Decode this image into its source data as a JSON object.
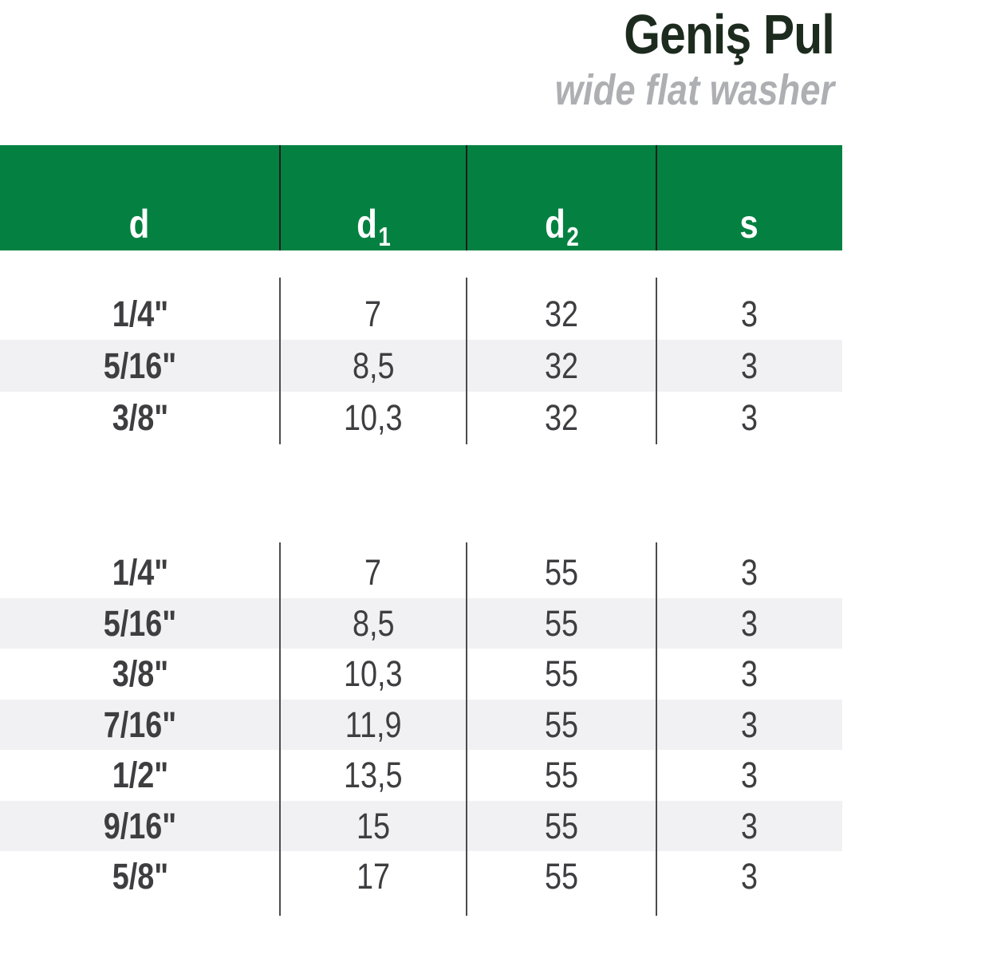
{
  "title": "Geniş Pul",
  "subtitle": "wide flat washer",
  "table": {
    "columns": [
      {
        "base": "d",
        "sub": ""
      },
      {
        "base": "d",
        "sub": "1"
      },
      {
        "base": "d",
        "sub": "2"
      },
      {
        "base": "s",
        "sub": ""
      }
    ],
    "sections": [
      {
        "rows": [
          [
            "1/4\"",
            "7",
            "32",
            "3"
          ],
          [
            "5/16\"",
            "8,5",
            "32",
            "3"
          ],
          [
            "3/8\"",
            "10,3",
            "32",
            "3"
          ]
        ]
      },
      {
        "rows": [
          [
            "1/4\"",
            "7",
            "55",
            "3"
          ],
          [
            "5/16\"",
            "8,5",
            "55",
            "3"
          ],
          [
            "3/8\"",
            "10,3",
            "55",
            "3"
          ],
          [
            "7/16\"",
            "11,9",
            "55",
            "3"
          ],
          [
            "1/2\"",
            "13,5",
            "55",
            "3"
          ],
          [
            "9/16\"",
            "15",
            "55",
            "3"
          ],
          [
            "5/8\"",
            "17",
            "55",
            "3"
          ]
        ]
      }
    ]
  },
  "colors": {
    "green": "#048141",
    "stripe": "#f1f0f2",
    "title_ink": "#1d2b1f",
    "subtitle_ink": "#aeafb3",
    "text_ink": "#3e3d40",
    "header_line": "#1d1d1d",
    "body_line": "#4b4b4e"
  }
}
